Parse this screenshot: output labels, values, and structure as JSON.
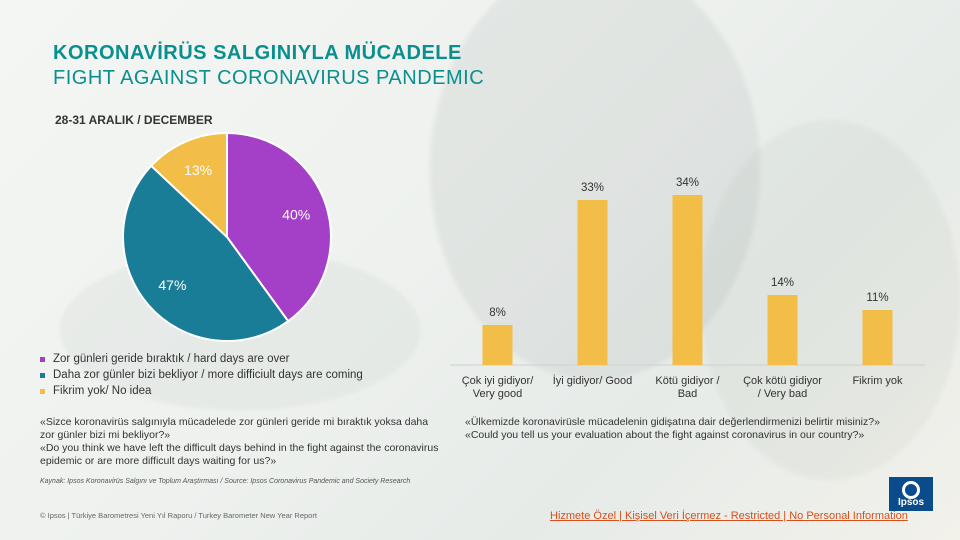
{
  "title": {
    "line1": "KORONAVİRÜS  SALGINIYLA  MÜCADELE",
    "line2": "FIGHT AGAINST  CORONAVIRUS  PANDEMIC"
  },
  "date_label": "28-31   ARALIK  / DECEMBER",
  "legend": [
    {
      "label": "Zor günleri geride bıraktık / hard days are over",
      "color": "#a43fc8"
    },
    {
      "label": "Daha zor günler bizi bekliyor / more difficiult days are coming",
      "color": "#1a7d97"
    },
    {
      "label": "Fikrim yok/ No idea",
      "color": "#f2be48"
    }
  ],
  "question_left": {
    "tr": "«Sizce koronavirüs salgınıyla mücadelede zor günleri geride mi bıraktık yoksa daha zor günler bizi mi bekliyor?»",
    "en": "«Do you think we have left the difficult days behind in the fight against the coronavirus epidemic or are more difficult days waiting for us?»"
  },
  "question_right": {
    "tr": "«Ülkemizde koronavirüsle mücadelenin gidişatına dair değerlendirmenizi belirtir misiniz?»",
    "en": "«Could you tell us your evaluation about the fight against coronavirus in our country?»"
  },
  "source": "Kaynak: Ipsos Koronavirüs Salgını ve Toplum Araştırması / Source: Ipsos Coronavirus Pandemic and Society Research",
  "footer": "© Ipsos | Türkiye Barometresi Yeni Yıl Raporu / Turkey Barometer New Year Report",
  "restricted": "Hizmete Özel | Kişisel Veri İçermez - Restricted | No Personal Information",
  "logo_text": "Ipsos",
  "chart_data": [
    {
      "type": "pie",
      "categories": [
        "Zor günleri geride bıraktık / hard days are over",
        "Daha zor günler bizi bekliyor / more difficiult days are coming",
        "Fikrim yok/ No idea"
      ],
      "values": [
        40,
        47,
        13
      ],
      "labels": [
        "40%",
        "47%",
        "13%"
      ],
      "colors": [
        "#a43fc8",
        "#1a7d97",
        "#f2be48"
      ]
    },
    {
      "type": "bar",
      "categories": [
        [
          "Çok iyi gidiyor/",
          "Very good"
        ],
        [
          "İyi gidiyor/ Good"
        ],
        [
          "Kötü gidiyor /",
          "Bad"
        ],
        [
          "Çok kötü gidiyor",
          "/ Very bad"
        ],
        [
          "Fikrim yok"
        ]
      ],
      "values": [
        8,
        33,
        34,
        14,
        11
      ],
      "labels": [
        "8%",
        "33%",
        "34%",
        "14%",
        "11%"
      ],
      "color": "#f2be48",
      "ylim": [
        0,
        40
      ]
    }
  ]
}
